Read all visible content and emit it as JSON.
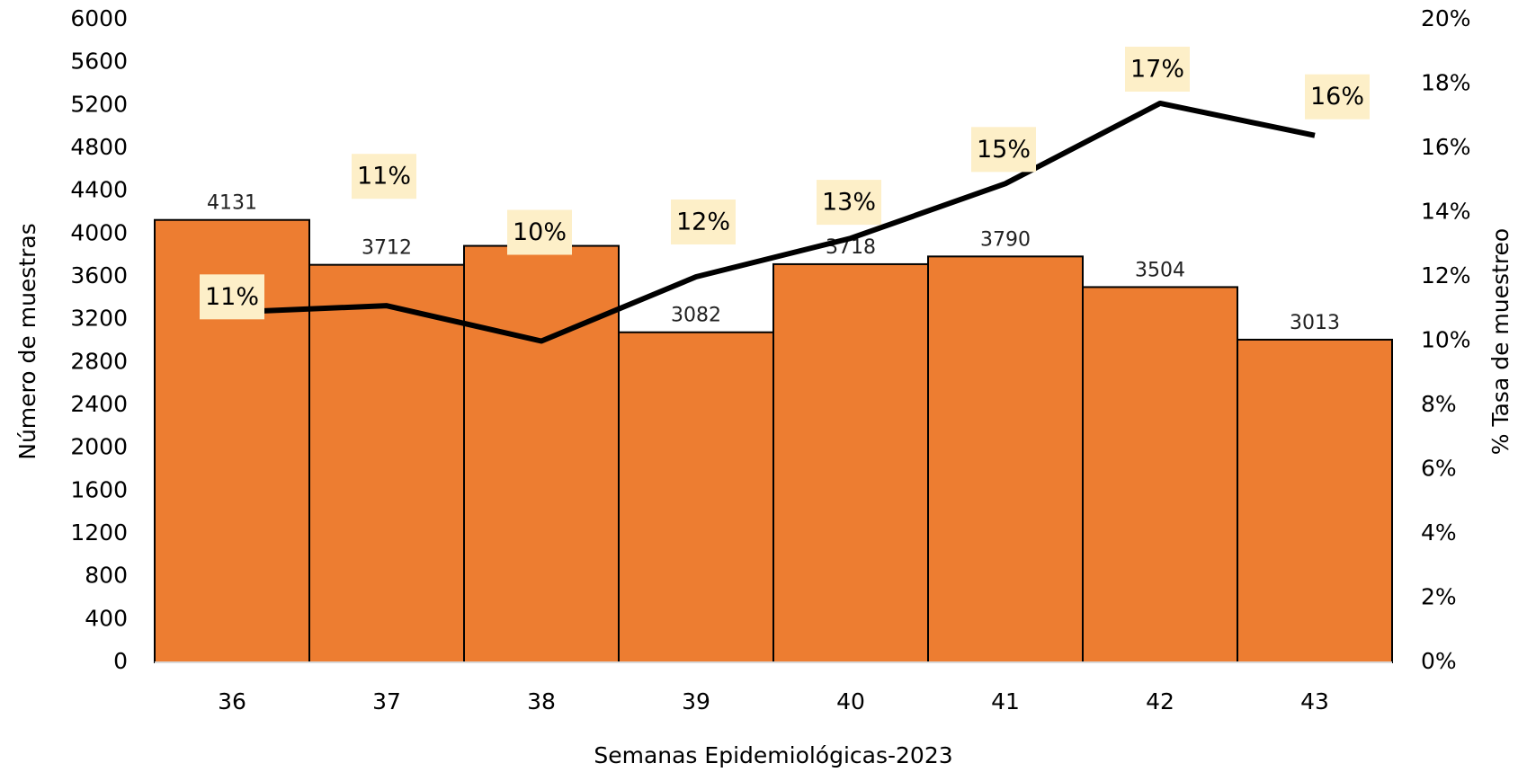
{
  "chart_data": {
    "type": "bar",
    "categories": [
      "36",
      "37",
      "38",
      "39",
      "40",
      "41",
      "42",
      "43"
    ],
    "series": [
      {
        "name": "Número de muestras",
        "type": "bar",
        "color": "#ed7d31",
        "values": [
          4131,
          3712,
          3889,
          3082,
          3718,
          3790,
          3504,
          3013
        ]
      },
      {
        "name": "% Tasa de muestreo",
        "type": "line",
        "axis": "y2",
        "color": "#000000",
        "values": [
          10.9,
          11.1,
          10.0,
          12.0,
          13.2,
          14.9,
          17.4,
          16.4
        ],
        "value_labels": [
          "11%",
          "11%",
          "10%",
          "12%",
          "13%",
          "15%",
          "17%",
          "16%"
        ]
      }
    ],
    "xlabel": "Semanas Epidemiológicas-2023",
    "ylabel": "Número de muestras",
    "y2label": "% Tasa de muestreo",
    "ylim": [
      0,
      6000
    ],
    "yticks": [
      0,
      400,
      800,
      1200,
      1600,
      2000,
      2400,
      2800,
      3200,
      3600,
      4000,
      4400,
      4800,
      5200,
      5600,
      6000
    ],
    "y2lim": [
      0,
      20
    ],
    "y2ticks": [
      {
        "value": 0,
        "label": "0%"
      },
      {
        "value": 2,
        "label": "2%"
      },
      {
        "value": 4,
        "label": "4%"
      },
      {
        "value": 6,
        "label": "6%"
      },
      {
        "value": 8,
        "label": "8%"
      },
      {
        "value": 10,
        "label": "10%"
      },
      {
        "value": 12,
        "label": "12%"
      },
      {
        "value": 14,
        "label": "14%"
      },
      {
        "value": 16,
        "label": "16%"
      },
      {
        "value": 18,
        "label": "18%"
      },
      {
        "value": 20,
        "label": "20%"
      }
    ],
    "grid": false
  }
}
